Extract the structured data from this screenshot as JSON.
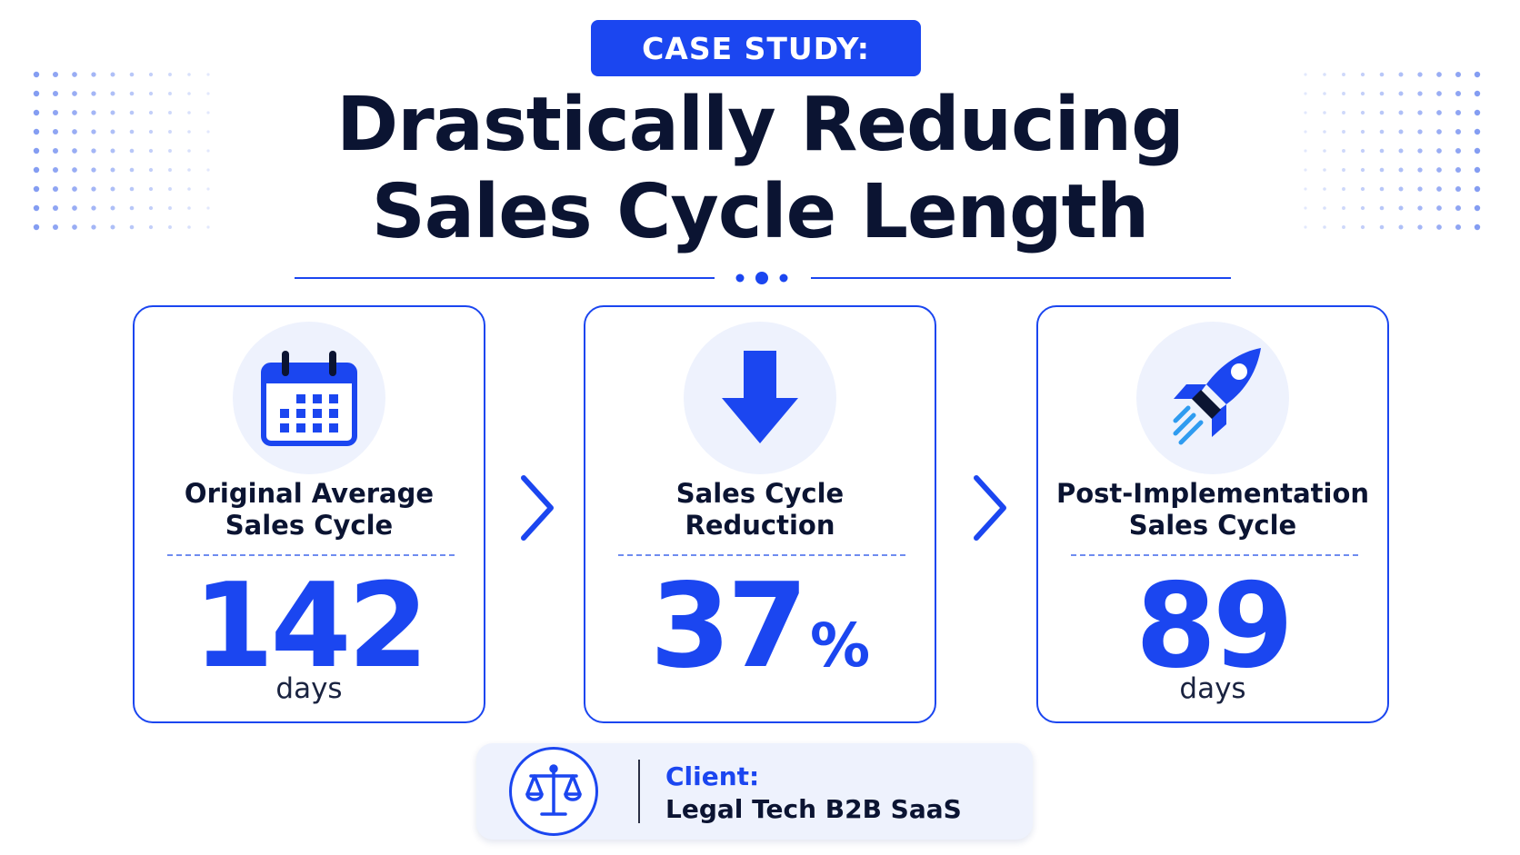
{
  "badge": {
    "text": "CASE STUDY:"
  },
  "title": {
    "line1": "Drastically Reducing",
    "line2": "Sales Cycle Length"
  },
  "colors": {
    "accent": "#1b46f0",
    "dark": "#0b1432",
    "icon_bg": "#eef2fd"
  },
  "cards": [
    {
      "icon": "calendar-icon",
      "label_line1": "Original Average",
      "label_line2": "Sales Cycle",
      "value": "142",
      "unit": "days"
    },
    {
      "icon": "arrow-down-icon",
      "label_line1": "Sales Cycle",
      "label_line2": "Reduction",
      "value": "37",
      "suffix": "%"
    },
    {
      "icon": "rocket-icon",
      "label_line1": "Post-Implementation",
      "label_line2": "Sales Cycle",
      "value": "89",
      "unit": "days"
    }
  ],
  "connectors": [
    "chevron-right-icon",
    "chevron-right-icon"
  ],
  "client": {
    "icon": "scales-of-justice-icon",
    "title": "Client:",
    "value": "Legal Tech B2B SaaS"
  }
}
